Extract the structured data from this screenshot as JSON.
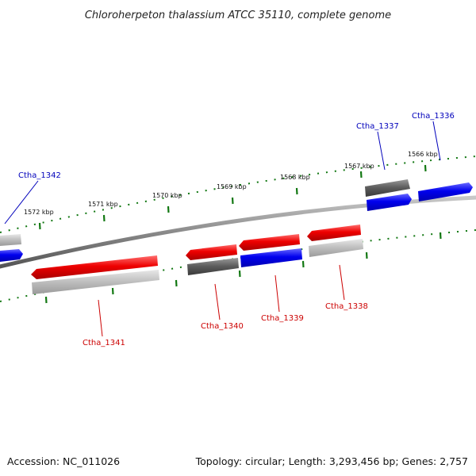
{
  "title": "Chloroherpeton thalassium ATCC 35110, complete genome",
  "footer": {
    "accession": "Accession: NC_011026",
    "summary": "Topology: circular; Length: 3,293,456 bp; Genes: 2,757"
  },
  "colors": {
    "forward_gene": "#0000ee",
    "reverse_gene": "#ee0000",
    "forward_label": "#0000bb",
    "reverse_label": "#cc0000",
    "pseudo_gene": "#606060",
    "rna_gene": "#bbbbbb",
    "backbone": "#888888",
    "ticks": "#117711"
  },
  "ticks": [
    {
      "label": "1566 kbp",
      "pos": 1566
    },
    {
      "label": "1567 kbp",
      "pos": 1567
    },
    {
      "label": "1568 kbp",
      "pos": 1568
    },
    {
      "label": "1569 kbp",
      "pos": 1569
    },
    {
      "label": "1570 kbp",
      "pos": 1570
    },
    {
      "label": "1571 kbp",
      "pos": 1571
    },
    {
      "label": "1572 kbp",
      "pos": 1572
    }
  ],
  "genes": [
    {
      "id": "Ctha_1336",
      "strand": "forward"
    },
    {
      "id": "Ctha_1337",
      "strand": "forward"
    },
    {
      "id": "Ctha_1338",
      "strand": "reverse"
    },
    {
      "id": "Ctha_1339",
      "strand": "reverse"
    },
    {
      "id": "Ctha_1340",
      "strand": "reverse"
    },
    {
      "id": "Ctha_1341",
      "strand": "reverse"
    },
    {
      "id": "Ctha_1342",
      "strand": "forward"
    }
  ]
}
